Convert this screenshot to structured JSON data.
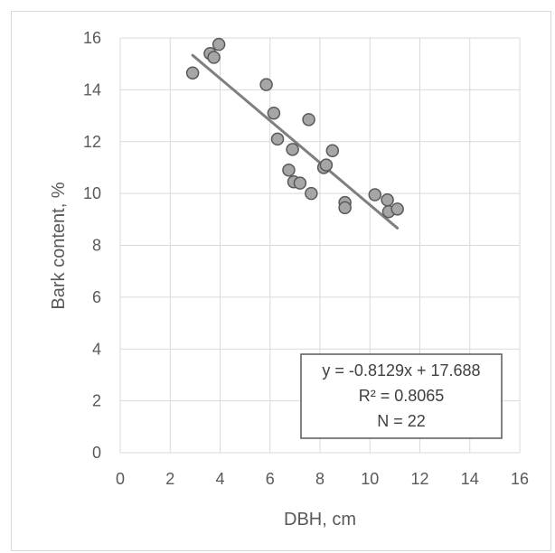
{
  "chart_data": {
    "type": "scatter",
    "title": "",
    "xlabel": "DBH, cm",
    "ylabel": "Bark content, %",
    "xlim": [
      0,
      16
    ],
    "ylim": [
      0,
      16
    ],
    "x_ticks": [
      0,
      2,
      4,
      6,
      8,
      10,
      12,
      14,
      16
    ],
    "y_ticks": [
      0,
      2,
      4,
      6,
      8,
      10,
      12,
      14,
      16
    ],
    "grid": true,
    "legend": "none",
    "marker_color": "#a6a6a6",
    "marker_edge_color": "#595959",
    "trendline_color": "#7f7f7f",
    "series": [
      {
        "points": [
          {
            "x": 2.9,
            "y": 14.65
          },
          {
            "x": 3.6,
            "y": 15.4
          },
          {
            "x": 3.75,
            "y": 15.25
          },
          {
            "x": 3.95,
            "y": 15.75
          },
          {
            "x": 5.85,
            "y": 14.2
          },
          {
            "x": 6.15,
            "y": 13.1
          },
          {
            "x": 6.3,
            "y": 12.1
          },
          {
            "x": 6.75,
            "y": 10.9
          },
          {
            "x": 6.9,
            "y": 11.7
          },
          {
            "x": 6.95,
            "y": 10.45
          },
          {
            "x": 7.2,
            "y": 10.4
          },
          {
            "x": 7.55,
            "y": 12.85
          },
          {
            "x": 7.65,
            "y": 10.0
          },
          {
            "x": 8.15,
            "y": 11.0
          },
          {
            "x": 8.25,
            "y": 11.1
          },
          {
            "x": 8.5,
            "y": 11.65
          },
          {
            "x": 9.0,
            "y": 9.65
          },
          {
            "x": 9.0,
            "y": 9.45
          },
          {
            "x": 10.2,
            "y": 9.95
          },
          {
            "x": 10.7,
            "y": 9.75
          },
          {
            "x": 10.75,
            "y": 9.3
          },
          {
            "x": 11.1,
            "y": 9.4
          }
        ]
      }
    ],
    "trendline": {
      "slope": -0.8129,
      "intercept": 17.688,
      "x_range": [
        2.9,
        11.1
      ]
    },
    "annotation": {
      "equation": "y = -0.8129x + 17.688",
      "r_squared": "R² = 0.8065",
      "n": "N = 22"
    }
  }
}
